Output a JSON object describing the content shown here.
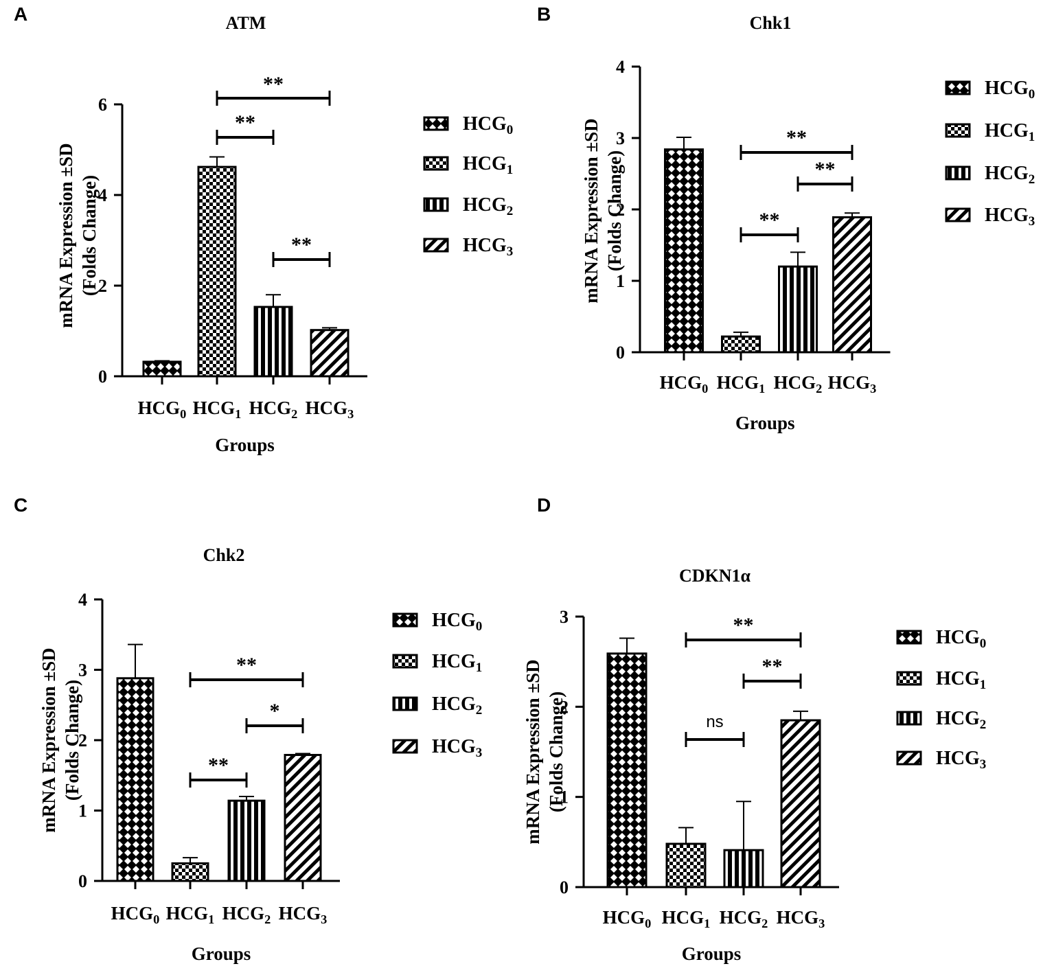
{
  "figure": {
    "ylabel_line1": "mRNA Expression ±SD",
    "ylabel_line2": "(Folds Change)",
    "xlabel": "Groups",
    "groups": [
      {
        "base": "HCG",
        "sub": "0"
      },
      {
        "base": "HCG",
        "sub": "1"
      },
      {
        "base": "HCG",
        "sub": "2"
      },
      {
        "base": "HCG",
        "sub": "3"
      }
    ],
    "colors": {
      "bar_stroke": "#000000",
      "background": "#ffffff"
    }
  },
  "chart_data": [
    {
      "panel": "A",
      "type": "bar",
      "title": "ATM",
      "categories": [
        "HCG0",
        "HCG1",
        "HCG2",
        "HCG3"
      ],
      "values": [
        0.32,
        4.62,
        1.53,
        1.02
      ],
      "errors": [
        0.02,
        0.22,
        0.27,
        0.05
      ],
      "ylim": [
        0,
        6
      ],
      "yticks": [
        0,
        2,
        4,
        6
      ],
      "significance": [
        {
          "from": 1,
          "to": 3,
          "label": "**"
        },
        {
          "from": 1,
          "to": 2,
          "label": "**"
        },
        {
          "from": 2,
          "to": 3,
          "label": "**"
        }
      ]
    },
    {
      "panel": "B",
      "type": "bar",
      "title": "Chk1",
      "categories": [
        "HCG0",
        "HCG1",
        "HCG2",
        "HCG3"
      ],
      "values": [
        2.84,
        0.22,
        1.2,
        1.89
      ],
      "errors": [
        0.17,
        0.06,
        0.2,
        0.06
      ],
      "ylim": [
        0,
        4
      ],
      "yticks": [
        0,
        1,
        2,
        3,
        4
      ],
      "significance": [
        {
          "from": 1,
          "to": 3,
          "label": "**"
        },
        {
          "from": 2,
          "to": 3,
          "label": "**"
        },
        {
          "from": 1,
          "to": 2,
          "label": "**"
        }
      ]
    },
    {
      "panel": "C",
      "type": "bar",
      "title": "Chk2",
      "categories": [
        "HCG0",
        "HCG1",
        "HCG2",
        "HCG3"
      ],
      "values": [
        2.88,
        0.25,
        1.14,
        1.79
      ],
      "errors": [
        0.48,
        0.08,
        0.06,
        0.02
      ],
      "ylim": [
        0,
        4
      ],
      "yticks": [
        0,
        1,
        2,
        3,
        4
      ],
      "significance": [
        {
          "from": 1,
          "to": 3,
          "label": "**"
        },
        {
          "from": 2,
          "to": 3,
          "label": "*"
        },
        {
          "from": 1,
          "to": 2,
          "label": "**"
        }
      ]
    },
    {
      "panel": "D",
      "type": "bar",
      "title": "CDKN1α",
      "categories": [
        "HCG0",
        "HCG1",
        "HCG2",
        "HCG3"
      ],
      "values": [
        2.59,
        0.48,
        0.41,
        1.85
      ],
      "errors": [
        0.17,
        0.18,
        0.54,
        0.1
      ],
      "ylim": [
        0,
        3
      ],
      "yticks": [
        0,
        1,
        2,
        3
      ],
      "significance": [
        {
          "from": 1,
          "to": 3,
          "label": "**"
        },
        {
          "from": 2,
          "to": 3,
          "label": "**"
        },
        {
          "from": 1,
          "to": 2,
          "label": "ns"
        }
      ]
    }
  ]
}
